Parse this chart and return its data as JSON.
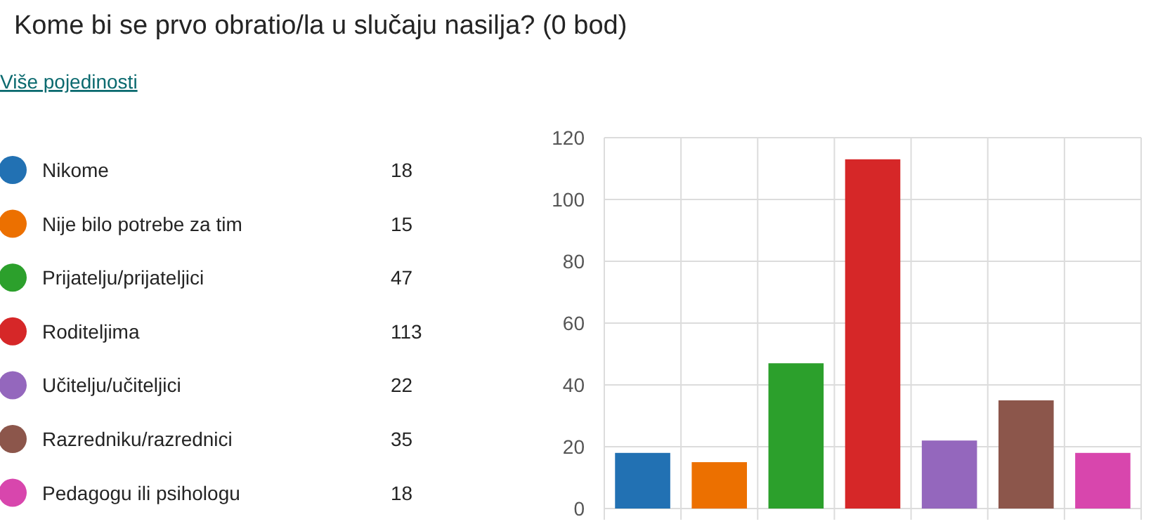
{
  "chart_data": {
    "type": "bar",
    "title": "Kome bi se prvo obratio/la u slučaju nasilja? (0 bod)",
    "annotations": [
      "Više pojedinosti",
      "18",
      "15",
      "47",
      "113",
      "22",
      "35",
      "18"
    ],
    "categories": [
      null,
      null,
      null,
      null,
      null,
      null,
      null
    ],
    "stacked": true,
    "series": [
      {
        "name": "Nikome",
        "color": "#2271b3",
        "values": [
          18,
          null,
          null,
          null,
          null,
          null,
          null
        ]
      },
      {
        "name": "Nije bilo potrebe za tim",
        "color": "#ec7000",
        "values": [
          null,
          15,
          null,
          null,
          null,
          null,
          null
        ]
      },
      {
        "name": "Prijatelju/prijateljici",
        "color": "#2ca02c",
        "values": [
          null,
          null,
          47,
          null,
          null,
          null,
          null
        ]
      },
      {
        "name": "Roditeljima",
        "color": "#d62728",
        "values": [
          null,
          null,
          null,
          113,
          null,
          null,
          null
        ]
      },
      {
        "name": "Učitelju/učiteljici",
        "color": "#9467bd",
        "values": [
          null,
          null,
          null,
          null,
          22,
          null,
          null
        ]
      },
      {
        "name": "Razredniku/razrednici",
        "color": "#8c564b",
        "values": [
          null,
          null,
          null,
          null,
          null,
          35,
          null
        ]
      },
      {
        "name": "Pedagogu ili psihologu",
        "color": "#d846ad",
        "values": [
          null,
          null,
          null,
          null,
          null,
          null,
          18
        ]
      }
    ],
    "ylim": [
      0,
      120
    ],
    "yticks": [
      0,
      20,
      40,
      60,
      80,
      100,
      120
    ],
    "grid": true,
    "legend": "left"
  }
}
